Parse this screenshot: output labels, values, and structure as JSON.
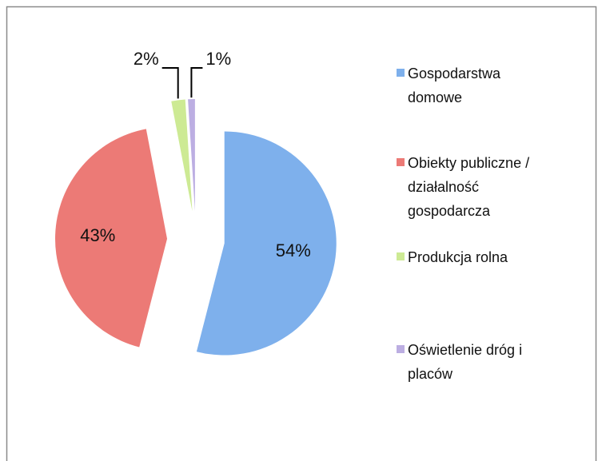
{
  "chart_data": {
    "type": "pie",
    "categories": [
      "Gospodarstwa domowe",
      "Obiekty publiczne / działalność gospodarcza",
      "Produkcja rolna",
      "Oświetlenie dróg i placów"
    ],
    "values": [
      54,
      43,
      2,
      1
    ],
    "value_labels": [
      "54%",
      "43%",
      "2%",
      "1%"
    ],
    "colors": [
      "#7eb0ec",
      "#ec7a76",
      "#cdea94",
      "#bcaee2"
    ],
    "legend": "right"
  }
}
